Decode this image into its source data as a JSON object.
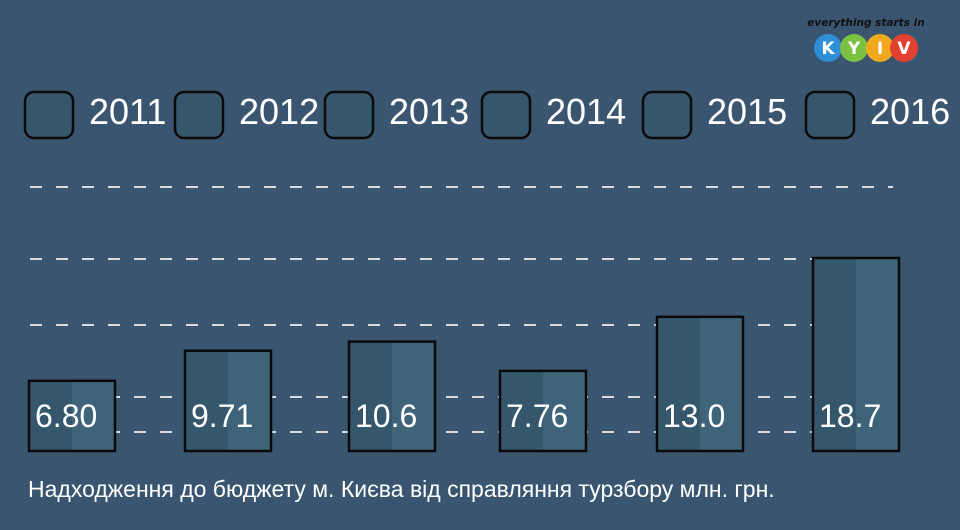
{
  "logo": {
    "tagline": "everything starts in",
    "letters": [
      "K",
      "Y",
      "I",
      "V"
    ],
    "colors": [
      "#2f8ed8",
      "#7cc242",
      "#f2a81d",
      "#e3412f"
    ]
  },
  "colors": {
    "background": "#3a5570",
    "bar_dark": "#34576c",
    "bar_light": "#3f6479",
    "outline": "#0a0a0a",
    "text": "#ffffff",
    "gridline": "#d7dde3"
  },
  "chart_data": {
    "type": "bar",
    "categories": [
      "2011",
      "2012",
      "2013",
      "2014",
      "2015",
      "2016"
    ],
    "values": [
      6.8,
      9.71,
      10.6,
      7.76,
      13.0,
      18.7
    ],
    "value_labels": [
      "6.80",
      "9.71",
      "10.6",
      "7.76",
      "13.0",
      "18.7"
    ],
    "title": "Надходження до бюджету м. Києва від справляння турзбору млн. грн.",
    "xlabel": "",
    "ylabel": "",
    "legend": {
      "position": "top",
      "entries": [
        "2011",
        "2012",
        "2013",
        "2014",
        "2015",
        "2016"
      ]
    },
    "grid": "dashed horizontal",
    "ylim": [
      0,
      22
    ]
  }
}
